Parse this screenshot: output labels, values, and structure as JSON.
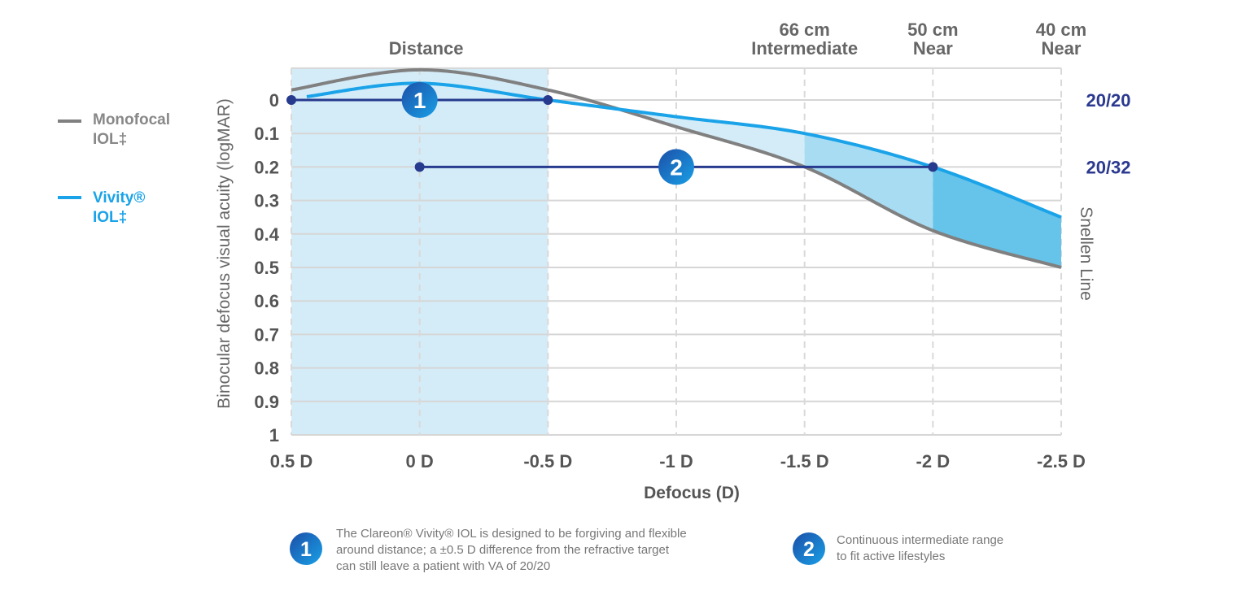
{
  "chart_data": {
    "type": "line",
    "xlabel": "Defocus (D)",
    "ylabel": "Binocular defocus visual acuity (logMAR)",
    "right_axis_label": "Snellen Line",
    "x_ticks": [
      0.5,
      0,
      -0.5,
      -1,
      -1.5,
      -2,
      -2.5
    ],
    "x_tick_labels": [
      "0.5 D",
      "0 D",
      "-0.5 D",
      "-1 D",
      "-1.5 D",
      "-2 D",
      "-2.5 D"
    ],
    "y_ticks": [
      0,
      0.1,
      0.2,
      0.3,
      0.4,
      0.5,
      0.6,
      0.7,
      0.8,
      0.9,
      1
    ],
    "y_tick_labels": [
      "0",
      "0.1",
      "0.2",
      "0.3",
      "0.4",
      "0.5",
      "0.6",
      "0.7",
      "0.8",
      "0.9",
      "1"
    ],
    "xlim": [
      0.5,
      -2.5
    ],
    "ylim": [
      -0.095,
      1
    ],
    "y_inverted": true,
    "grid": true,
    "legend_placement": "left",
    "snellen_labels": [
      {
        "y": 0,
        "label": "20/20"
      },
      {
        "y": 0.2,
        "label": "20/32"
      }
    ],
    "distance_labels": [
      {
        "x": 0,
        "lines": [
          "",
          "Distance"
        ]
      },
      {
        "x": -1.5,
        "lines": [
          "66 cm",
          "Intermediate"
        ]
      },
      {
        "x": -2,
        "lines": [
          "50 cm",
          "Near"
        ]
      },
      {
        "x": -2.5,
        "lines": [
          "40 cm",
          "Near"
        ]
      }
    ],
    "series": [
      {
        "name": "Monofocal IOL‡",
        "name_lines": [
          "Monofocal",
          "IOL‡"
        ],
        "color": "#808080",
        "x": [
          0.5,
          0,
          -0.5,
          -1,
          -1.5,
          -2,
          -2.5
        ],
        "y": [
          -0.03,
          -0.09,
          -0.03,
          0.08,
          0.2,
          0.39,
          0.5
        ]
      },
      {
        "name": "Vivity® IOL‡",
        "name_lines": [
          "Vivity®",
          "IOL‡"
        ],
        "color": "#1aa3e8",
        "x": [
          0.44,
          0,
          -0.5,
          -1,
          -1.5,
          -2,
          -2.5
        ],
        "y": [
          -0.01,
          -0.05,
          0,
          0.05,
          0.1,
          0.2,
          0.35
        ]
      }
    ],
    "shaded_distance_range": [
      0.5,
      -0.5
    ],
    "ranges": [
      {
        "badge": "1",
        "from": 0.5,
        "to": -0.5,
        "y": 0,
        "badge_x": 0
      },
      {
        "badge": "2",
        "from": 0,
        "to": -2,
        "y": 0.2,
        "badge_x": -1
      }
    ],
    "colors": {
      "accent_navy": "#263a8e",
      "shade_light": "#d4ecf8",
      "shade_mid": "#a8dcf2",
      "shade_dark": "#66c3e9"
    }
  },
  "footnotes": [
    {
      "badge": "1",
      "lines": [
        "The Clareon® Vivity® IOL is designed to be forgiving and flexible",
        "around distance; a ±0.5 D difference from the refractive target",
        "can still leave a patient with VA of 20/20"
      ]
    },
    {
      "badge": "2",
      "lines": [
        "Continuous intermediate range",
        "to fit active lifestyles"
      ]
    }
  ]
}
